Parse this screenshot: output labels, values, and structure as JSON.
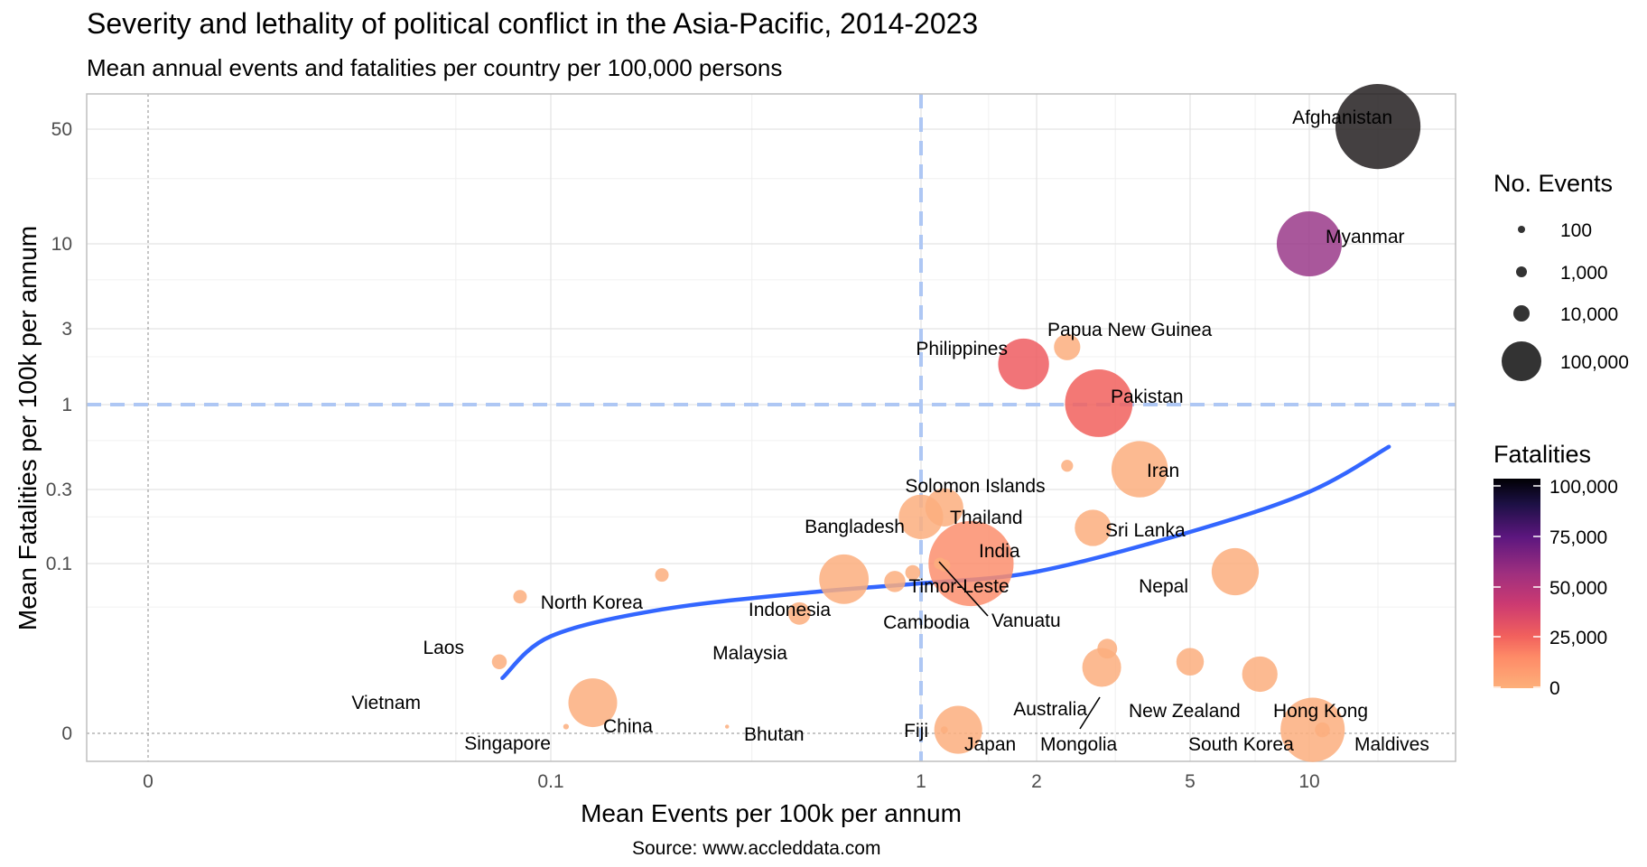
{
  "title": "Severity and lethality of political conflict in the Asia-Pacific, 2014-2023",
  "subtitle": "Mean annual events and fatalities per country per 100,000 persons",
  "caption": "Source: www.accleddata.com",
  "chart_data": {
    "type": "scatter",
    "xlabel": "Mean Events per 100k per annum",
    "ylabel": "Mean Fatalities per 100k per annum",
    "x_scale": "pseudo-log",
    "y_scale": "pseudo-log",
    "xlim": [
      0,
      20
    ],
    "ylim": [
      0,
      70
    ],
    "x_ticks": [
      {
        "value": 0,
        "label": "0"
      },
      {
        "value": 0.1,
        "label": "0.1"
      },
      {
        "value": 1,
        "label": "1"
      },
      {
        "value": 2,
        "label": "2"
      },
      {
        "value": 5,
        "label": "5"
      },
      {
        "value": 10,
        "label": "10"
      }
    ],
    "y_ticks": [
      {
        "value": 0,
        "label": "0"
      },
      {
        "value": 0.1,
        "label": "0.1"
      },
      {
        "value": 0.3,
        "label": "0.3"
      },
      {
        "value": 1,
        "label": "1"
      },
      {
        "value": 3,
        "label": "3"
      },
      {
        "value": 10,
        "label": "10"
      },
      {
        "value": 50,
        "label": "50"
      }
    ],
    "reference_lines": {
      "x": 1,
      "y": 1,
      "style": "dashed",
      "color": "#aec7f4"
    },
    "zero_lines": {
      "x": 0,
      "y": 0,
      "style": "dotted",
      "color": "#808080"
    },
    "trend_line": {
      "method": "smooth",
      "color": "#3366ff",
      "points": [
        [
          0.057,
          0.0035
        ],
        [
          0.1,
          0.013
        ],
        [
          0.2,
          0.028
        ],
        [
          0.5,
          0.045
        ],
        [
          1,
          0.058
        ],
        [
          2,
          0.08
        ],
        [
          5,
          0.16
        ],
        [
          10,
          0.29
        ],
        [
          16,
          0.55
        ]
      ]
    },
    "grid": true,
    "legend_position": "right",
    "size_legend": {
      "title": "No. Events",
      "entries": [
        {
          "value": 100,
          "label": "100"
        },
        {
          "value": 1000,
          "label": "1,000"
        },
        {
          "value": 10000,
          "label": "10,000"
        },
        {
          "value": 100000,
          "label": "100,000"
        }
      ]
    },
    "color_legend": {
      "title": "Fatalities",
      "ticks": [
        {
          "value": 100000,
          "label": "100,000"
        },
        {
          "value": 75000,
          "label": "75,000"
        },
        {
          "value": 50000,
          "label": "50,000"
        },
        {
          "value": 25000,
          "label": "25,000"
        },
        {
          "value": 0,
          "label": "0"
        }
      ],
      "colors": [
        "#fcfdbf",
        "#fe9f6d",
        "#f1605d",
        "#de4968",
        "#b73779",
        "#8c2981",
        "#51127c",
        "#231151",
        "#000004"
      ]
    },
    "points": [
      {
        "name": "Afghanistan",
        "x": 15,
        "y": 52,
        "events": 190000,
        "fatalities": 100000,
        "color": "#231f20"
      },
      {
        "name": "Myanmar",
        "x": 10,
        "y": 10,
        "events": 55000,
        "fatalities": 54000,
        "color": "#9a3a8a"
      },
      {
        "name": "Papua New Guinea",
        "x": 2.4,
        "y": 2.3,
        "events": 2200,
        "fatalities": 2100
      },
      {
        "name": "Philippines",
        "x": 1.85,
        "y": 1.8,
        "events": 20000,
        "fatalities": 19500,
        "color": "#ee5c60"
      },
      {
        "name": "Pakistan",
        "x": 2.9,
        "y": 1.02,
        "events": 65000,
        "fatalities": 23000,
        "color": "#f1605d"
      },
      {
        "name": "",
        "x": 2.4,
        "y": 0.42,
        "events": 300,
        "fatalities": 50
      },
      {
        "name": "Iran",
        "x": 3.7,
        "y": 0.4,
        "events": 30000,
        "fatalities": 3300
      },
      {
        "name": "Solomon Islands",
        "x": 1.15,
        "y": 0.23,
        "events": 7000,
        "fatalities": 1500
      },
      {
        "name": "Thailand",
        "x": 1.0,
        "y": 0.2,
        "events": 12000,
        "fatalities": 1400
      },
      {
        "name": "Sri Lanka",
        "x": 2.8,
        "y": 0.17,
        "events": 6000,
        "fatalities": 400
      },
      {
        "name": "Bangladesh",
        "x": 1.12,
        "y": 0.1,
        "events": 300,
        "fatalities": 160
      },
      {
        "name": "India",
        "x": 1.35,
        "y": 0.1,
        "events": 190000,
        "fatalities": 14000,
        "color": "#fb8e6d"
      },
      {
        "name": "Nepal",
        "x": 6.5,
        "y": 0.08,
        "events": 15000,
        "fatalities": 250
      },
      {
        "name": "North Korea",
        "x": 0.2,
        "y": 0.073,
        "events": 400,
        "fatalities": 20
      },
      {
        "name": "Timor-Leste",
        "x": 0.95,
        "y": 0.078,
        "events": 500,
        "fatalities": 10
      },
      {
        "name": "Indonesia",
        "x": 0.62,
        "y": 0.065,
        "events": 18000,
        "fatalities": 1700
      },
      {
        "name": "Cambodia",
        "x": 0.85,
        "y": 0.061,
        "events": 1200,
        "fatalities": 100
      },
      {
        "name": "Vanuatu",
        "x": 1.15,
        "y": 0.095,
        "events": 300,
        "fatalities": 3
      },
      {
        "name": "Laos",
        "x": 0.07,
        "y": 0.04,
        "events": 400,
        "fatalities": 30
      },
      {
        "name": "Malaysia",
        "x": 0.47,
        "y": 0.025,
        "events": 1400,
        "fatalities": 80
      },
      {
        "name": "Vietnam",
        "x": 0.055,
        "y": 0.006,
        "events": 500,
        "fatalities": 60
      },
      {
        "name": "China",
        "x": 0.13,
        "y": 0.0013,
        "events": 17000,
        "fatalities": 180
      },
      {
        "name": "Singapore",
        "x": 0.11,
        "y": 0.0002,
        "events": 60,
        "fatalities": 0
      },
      {
        "name": "Bhutan",
        "x": 0.3,
        "y": 0.0002,
        "events": 20,
        "fatalities": 0
      },
      {
        "name": "Fiji",
        "x": 1.15,
        "y": 0.0001,
        "events": 100,
        "fatalities": 0
      },
      {
        "name": "Japan",
        "x": 1.25,
        "y": 0.0001,
        "events": 16000,
        "fatalities": 1
      },
      {
        "name": "Mongolia",
        "x": 3.05,
        "y": 0.009,
        "events": 1000,
        "fatalities": 3
      },
      {
        "name": "Australia",
        "x": 2.95,
        "y": 0.005,
        "events": 7500,
        "fatalities": 20
      },
      {
        "name": "New Zealand",
        "x": 5.0,
        "y": 0.006,
        "events": 2500,
        "fatalities": 2
      },
      {
        "name": "Hong Kong",
        "x": 7.5,
        "y": 0.004,
        "events": 5500,
        "fatalities": 2
      },
      {
        "name": "South Korea",
        "x": 10.2,
        "y": 0.0001,
        "events": 52000,
        "fatalities": 5
      },
      {
        "name": "Maldives",
        "x": 10.8,
        "y": 0.0001,
        "events": 500,
        "fatalities": 0
      }
    ]
  }
}
